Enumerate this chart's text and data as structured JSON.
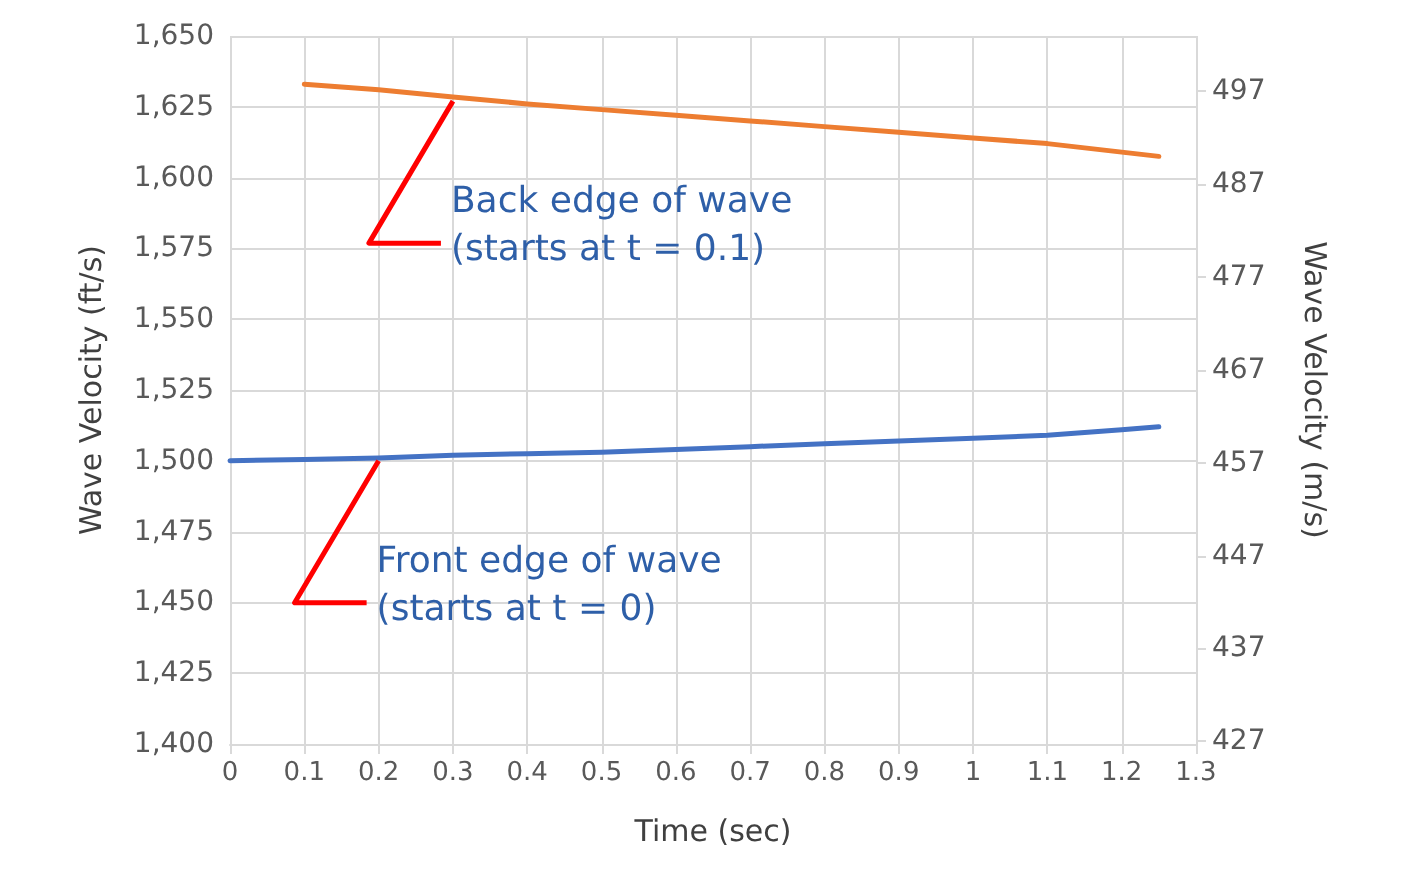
{
  "chart_data": {
    "type": "line",
    "xlabel": "Time (sec)",
    "ylabel": "Wave Velocity (ft/s)",
    "y2label": "Wave Velocity (m/s)",
    "xlim": [
      0,
      1.3
    ],
    "xticks": [
      0,
      0.1,
      0.2,
      0.3,
      0.4,
      0.5,
      0.6,
      0.7,
      0.8,
      0.9,
      1,
      1.1,
      1.2,
      1.3
    ],
    "ylim": [
      1400,
      1650
    ],
    "yticks": [
      {
        "value": 1400,
        "label": "1,400"
      },
      {
        "value": 1425,
        "label": "1,425"
      },
      {
        "value": 1450,
        "label": "1,450"
      },
      {
        "value": 1475,
        "label": "1,475"
      },
      {
        "value": 1500,
        "label": "1,500"
      },
      {
        "value": 1525,
        "label": "1,525"
      },
      {
        "value": 1550,
        "label": "1,550"
      },
      {
        "value": 1575,
        "label": "1,575"
      },
      {
        "value": 1600,
        "label": "1,600"
      },
      {
        "value": 1625,
        "label": "1,625"
      },
      {
        "value": 1650,
        "label": "1,650"
      }
    ],
    "y2lim": [
      426.72,
      502.92
    ],
    "y2ticks": [
      427,
      437,
      447,
      457,
      467,
      477,
      487,
      497
    ],
    "grid": true,
    "marker": "none",
    "line_style": "solid",
    "series": [
      {
        "color": "#4472c4",
        "x": [
          0,
          0.1,
          0.2,
          0.3,
          0.4,
          0.5,
          0.6,
          0.7,
          0.8,
          0.9,
          1.0,
          1.1,
          1.2,
          1.25
        ],
        "values": [
          1500,
          1500.5,
          1501,
          1502,
          1502.5,
          1503,
          1504,
          1505,
          1506,
          1507,
          1508,
          1509,
          1511,
          1512
        ]
      },
      {
        "color": "#ed7d31",
        "x": [
          0.1,
          0.2,
          0.3,
          0.4,
          0.5,
          0.6,
          0.7,
          0.8,
          0.9,
          1.0,
          1.1,
          1.2,
          1.25
        ],
        "values": [
          1633,
          1631,
          1628.5,
          1626,
          1624,
          1622,
          1620,
          1618,
          1616,
          1614,
          1612,
          1609,
          1607.5
        ]
      }
    ],
    "annotations": [
      {
        "text": "Back edge of wave\n(starts at t = 0.1)",
        "x": 0.3,
        "y": 1627
      },
      {
        "text": "Front edge of wave\n(starts at t = 0)",
        "x": 0.2,
        "y": 1500
      }
    ]
  }
}
